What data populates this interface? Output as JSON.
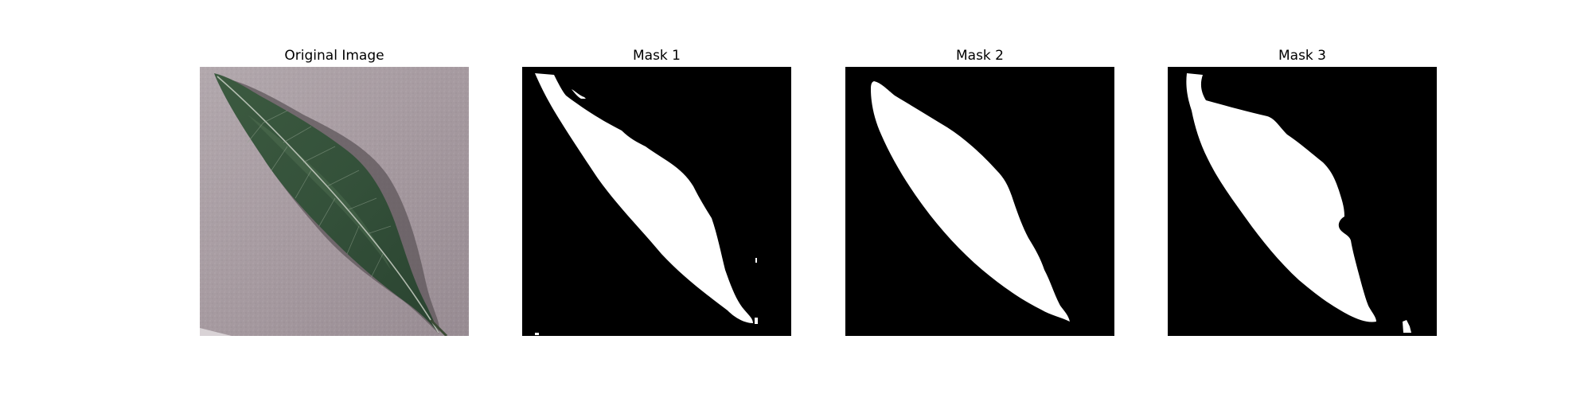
{
  "figure": {
    "panels": [
      {
        "title": "Original Image",
        "kind": "photo",
        "subject": "leaf"
      },
      {
        "title": "Mask 1",
        "kind": "binary-mask",
        "foreground": "#ffffff",
        "background": "#000000"
      },
      {
        "title": "Mask 2",
        "kind": "binary-mask",
        "foreground": "#ffffff",
        "background": "#000000"
      },
      {
        "title": "Mask 3",
        "kind": "binary-mask",
        "foreground": "#ffffff",
        "background": "#000000"
      }
    ],
    "colors": {
      "leaf_dark": "#2f4a33",
      "leaf_mid": "#3f5e43",
      "leaf_vein": "#c9cfc4",
      "background_surface": "#a69aa0",
      "shadow": "#5e555a"
    }
  }
}
